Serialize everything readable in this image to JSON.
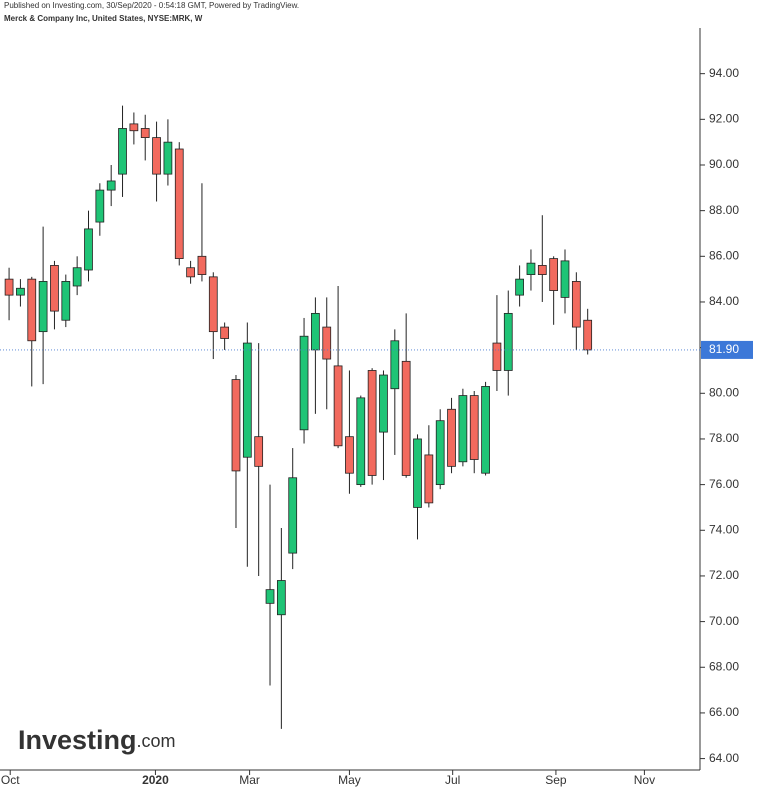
{
  "chart_data": {
    "type": "candlestick",
    "subtitle": "Published on Investing.com, 30/Sep/2020 - 0:54:18 GMT, Powered by TradingView.",
    "title": "Merck & Company Inc, United States, NYSE:MRK, W",
    "watermark": {
      "brand": "Investing",
      "suffix": ".com"
    },
    "up_color": "#1fc476",
    "down_color": "#f26a5e",
    "open": [
      85.0,
      84.3,
      85.0,
      82.7,
      85.6,
      83.2,
      84.7,
      85.4,
      87.5,
      88.9,
      89.6,
      91.8,
      91.6,
      91.2,
      89.6,
      90.7,
      85.5,
      86.0,
      85.1,
      82.9,
      80.6,
      77.2,
      78.1,
      70.8,
      70.3,
      73.0,
      78.4,
      81.9,
      82.9,
      81.2,
      78.1,
      76.0,
      81.0,
      78.3,
      80.2,
      81.4,
      75.0,
      77.3,
      76.0,
      79.3,
      77.0,
      79.9,
      76.5,
      82.2,
      81.0,
      84.3,
      85.2,
      85.6,
      85.9,
      84.2,
      84.9,
      83.2
    ],
    "close": [
      84.3,
      84.6,
      82.3,
      84.9,
      83.6,
      84.9,
      85.5,
      87.2,
      88.9,
      89.3,
      91.6,
      91.5,
      91.2,
      89.6,
      91.0,
      85.9,
      85.1,
      85.2,
      82.7,
      82.4,
      76.6,
      82.2,
      76.8,
      71.4,
      71.8,
      76.3,
      82.5,
      83.5,
      81.5,
      77.7,
      76.5,
      79.8,
      76.4,
      80.8,
      82.3,
      76.4,
      78.0,
      75.2,
      78.8,
      76.8,
      79.9,
      77.1,
      80.3,
      81.0,
      83.5,
      85.0,
      85.7,
      85.2,
      84.5,
      85.8,
      82.9,
      81.9
    ],
    "high": [
      85.5,
      85.0,
      85.1,
      87.3,
      85.8,
      85.2,
      86.0,
      88.0,
      89.2,
      90.0,
      92.6,
      92.3,
      92.2,
      91.9,
      92.0,
      91.0,
      85.8,
      89.2,
      85.3,
      83.1,
      80.8,
      83.1,
      82.2,
      76.0,
      74.1,
      77.6,
      83.3,
      84.2,
      84.2,
      84.7,
      81.0,
      79.9,
      81.1,
      81.0,
      82.8,
      83.5,
      78.2,
      78.6,
      79.3,
      79.8,
      80.2,
      80.1,
      80.5,
      84.3,
      84.5,
      85.6,
      86.3,
      87.8,
      86.0,
      86.3,
      85.3,
      83.7
    ],
    "low": [
      83.2,
      83.8,
      80.3,
      80.4,
      82.8,
      82.9,
      84.3,
      84.9,
      86.9,
      88.2,
      88.6,
      90.9,
      90.2,
      88.4,
      89.1,
      85.6,
      84.8,
      84.9,
      81.5,
      81.9,
      74.1,
      72.4,
      72.0,
      67.2,
      65.3,
      72.3,
      77.8,
      79.1,
      79.3,
      77.6,
      75.6,
      75.9,
      76.0,
      76.2,
      77.3,
      76.3,
      73.6,
      75.0,
      75.8,
      76.5,
      76.8,
      76.5,
      76.4,
      80.1,
      79.9,
      83.8,
      84.5,
      84.0,
      83.0,
      83.5,
      81.9,
      81.7
    ],
    "xlim": [
      -0.8,
      60.9
    ],
    "xticks": [
      {
        "value": 0.1,
        "label": "Oct"
      },
      {
        "value": 12.9,
        "label": "2020"
      },
      {
        "value": 21.2,
        "label": "Mar"
      },
      {
        "value": 30,
        "label": "May"
      },
      {
        "value": 39.1,
        "label": "Jul"
      },
      {
        "value": 48.2,
        "label": "Sep"
      },
      {
        "value": 56,
        "label": "Nov"
      }
    ],
    "ylim": [
      63.5,
      96
    ],
    "yticks": [
      {
        "value": 64,
        "label": "64.00"
      },
      {
        "value": 66,
        "label": "66.00"
      },
      {
        "value": 68,
        "label": "68.00"
      },
      {
        "value": 70,
        "label": "70.00"
      },
      {
        "value": 72,
        "label": "72.00"
      },
      {
        "value": 74,
        "label": "74.00"
      },
      {
        "value": 76,
        "label": "76.00"
      },
      {
        "value": 78,
        "label": "78.00"
      },
      {
        "value": 80,
        "label": "80.00"
      },
      {
        "value": 82,
        "label": "82.00"
      },
      {
        "value": 84,
        "label": "84.00"
      },
      {
        "value": 86,
        "label": "86.00"
      },
      {
        "value": 88,
        "label": "88.00"
      },
      {
        "value": 90,
        "label": "90.00"
      },
      {
        "value": 92,
        "label": "92.00"
      },
      {
        "value": 94,
        "label": "94.00"
      }
    ],
    "last_price": {
      "value": 81.9,
      "label": "81.90"
    }
  }
}
